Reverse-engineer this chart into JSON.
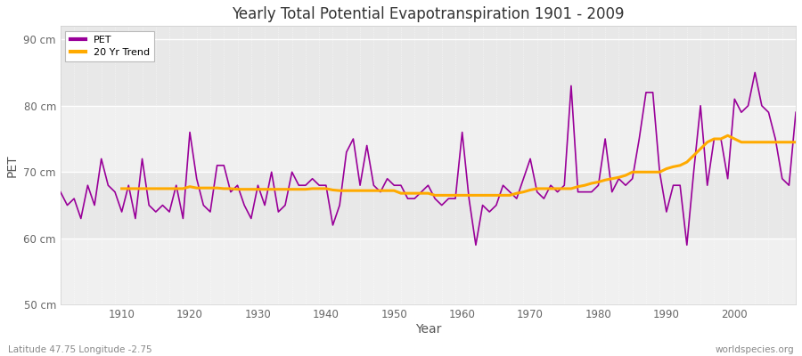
{
  "title": "Yearly Total Potential Evapotranspiration 1901 - 2009",
  "xlabel": "Year",
  "ylabel": "PET",
  "footer_left": "Latitude 47.75 Longitude -2.75",
  "footer_right": "worldspecies.org",
  "pet_color": "#990099",
  "trend_color": "#ffaa00",
  "bg_outer": "#ffffff",
  "bg_plot": "#e8e8e8",
  "bg_band": "#f0f0f0",
  "ylim": [
    50,
    92
  ],
  "xlim": [
    1901,
    2009
  ],
  "yticks": [
    50,
    60,
    70,
    80,
    90
  ],
  "ytick_labels": [
    "50 cm",
    "60 cm",
    "70 cm",
    "80 cm",
    "90 cm"
  ],
  "xticks": [
    1910,
    1920,
    1930,
    1940,
    1950,
    1960,
    1970,
    1980,
    1990,
    2000
  ],
  "years": [
    1901,
    1902,
    1903,
    1904,
    1905,
    1906,
    1907,
    1908,
    1909,
    1910,
    1911,
    1912,
    1913,
    1914,
    1915,
    1916,
    1917,
    1918,
    1919,
    1920,
    1921,
    1922,
    1923,
    1924,
    1925,
    1926,
    1927,
    1928,
    1929,
    1930,
    1931,
    1932,
    1933,
    1934,
    1935,
    1936,
    1937,
    1938,
    1939,
    1940,
    1941,
    1942,
    1943,
    1944,
    1945,
    1946,
    1947,
    1948,
    1949,
    1950,
    1951,
    1952,
    1953,
    1954,
    1955,
    1956,
    1957,
    1958,
    1959,
    1960,
    1961,
    1962,
    1963,
    1964,
    1965,
    1966,
    1967,
    1968,
    1969,
    1970,
    1971,
    1972,
    1973,
    1974,
    1975,
    1976,
    1977,
    1978,
    1979,
    1980,
    1981,
    1982,
    1983,
    1984,
    1985,
    1986,
    1987,
    1988,
    1989,
    1990,
    1991,
    1992,
    1993,
    1994,
    1995,
    1996,
    1997,
    1998,
    1999,
    2000,
    2001,
    2002,
    2003,
    2004,
    2005,
    2006,
    2007,
    2008,
    2009
  ],
  "pet_values": [
    67,
    65,
    66,
    63,
    68,
    65,
    72,
    68,
    67,
    64,
    68,
    63,
    72,
    65,
    64,
    65,
    64,
    68,
    63,
    76,
    69,
    65,
    64,
    71,
    71,
    67,
    68,
    65,
    63,
    68,
    65,
    70,
    64,
    65,
    70,
    68,
    68,
    69,
    68,
    68,
    62,
    65,
    73,
    75,
    68,
    74,
    68,
    67,
    69,
    68,
    68,
    66,
    66,
    67,
    68,
    66,
    65,
    66,
    66,
    76,
    66,
    59,
    65,
    64,
    65,
    68,
    67,
    66,
    69,
    72,
    67,
    66,
    68,
    67,
    68,
    83,
    67,
    67,
    67,
    68,
    75,
    67,
    69,
    68,
    69,
    75,
    82,
    82,
    70,
    64,
    68,
    68,
    59,
    70,
    80,
    68,
    75,
    75,
    69,
    81,
    79,
    80,
    85,
    80,
    79,
    75,
    69,
    68,
    79
  ],
  "trend_years": [
    1910,
    1911,
    1912,
    1913,
    1914,
    1915,
    1916,
    1917,
    1918,
    1919,
    1920,
    1921,
    1922,
    1923,
    1924,
    1925,
    1926,
    1927,
    1928,
    1929,
    1930,
    1931,
    1932,
    1933,
    1934,
    1935,
    1936,
    1937,
    1938,
    1939,
    1940,
    1941,
    1942,
    1943,
    1944,
    1945,
    1946,
    1947,
    1948,
    1949,
    1950,
    1951,
    1952,
    1953,
    1954,
    1955,
    1956,
    1957,
    1958,
    1959,
    1960,
    1961,
    1962,
    1963,
    1964,
    1965,
    1966,
    1967,
    1968,
    1969,
    1970,
    1971,
    1972,
    1973,
    1974,
    1975,
    1976,
    1977,
    1978,
    1979,
    1980,
    1981,
    1982,
    1983,
    1984,
    1985,
    1986,
    1987,
    1988,
    1989,
    1990,
    1991,
    1992,
    1993,
    1994,
    1995,
    1996,
    1997,
    1998,
    1999,
    2000,
    2001,
    2002,
    2003,
    2004,
    2005,
    2006,
    2007,
    2008,
    2009
  ],
  "trend_values": [
    67.5,
    67.5,
    67.5,
    67.5,
    67.5,
    67.5,
    67.5,
    67.5,
    67.5,
    67.5,
    67.8,
    67.6,
    67.6,
    67.6,
    67.6,
    67.5,
    67.5,
    67.4,
    67.4,
    67.4,
    67.4,
    67.4,
    67.4,
    67.4,
    67.4,
    67.4,
    67.4,
    67.4,
    67.5,
    67.5,
    67.5,
    67.3,
    67.2,
    67.2,
    67.2,
    67.2,
    67.2,
    67.2,
    67.2,
    67.2,
    67.2,
    66.8,
    66.8,
    66.8,
    66.8,
    66.8,
    66.5,
    66.5,
    66.5,
    66.5,
    66.5,
    66.5,
    66.5,
    66.5,
    66.5,
    66.5,
    66.5,
    66.5,
    66.8,
    67.0,
    67.3,
    67.5,
    67.5,
    67.5,
    67.5,
    67.5,
    67.5,
    67.8,
    68.0,
    68.3,
    68.5,
    68.8,
    69.0,
    69.2,
    69.5,
    70.0,
    70.0,
    70.0,
    70.0,
    70.0,
    70.5,
    70.8,
    71.0,
    71.5,
    72.5,
    73.5,
    74.5,
    75.0,
    75.0,
    75.5,
    75.0,
    74.5,
    74.5,
    74.5,
    74.5,
    74.5,
    74.5,
    74.5,
    74.5,
    74.5
  ]
}
